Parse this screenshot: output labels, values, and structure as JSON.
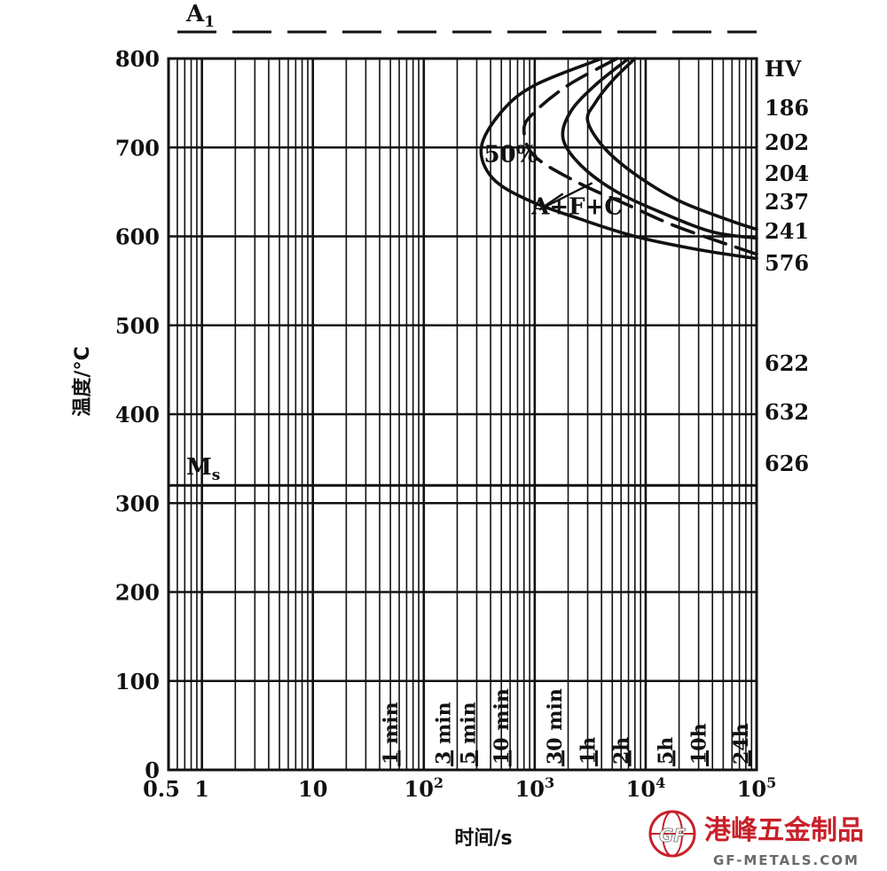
{
  "chart_data": {
    "type": "line",
    "title": "",
    "xlabel": "时间/s",
    "ylabel": "温度/°C",
    "x_scale": "log",
    "xlim": [
      0.5,
      100000
    ],
    "ylim": [
      0,
      800
    ],
    "x_ticks": [
      {
        "value": 0.5,
        "label": "0.5"
      },
      {
        "value": 1,
        "label": "1"
      },
      {
        "value": 10,
        "label": "10"
      },
      {
        "value": 100,
        "label": "10",
        "sup": "2"
      },
      {
        "value": 1000,
        "label": "10",
        "sup": "3"
      },
      {
        "value": 10000,
        "label": "10",
        "sup": "4"
      },
      {
        "value": 100000,
        "label": "10",
        "sup": "5"
      }
    ],
    "y_ticks": [
      0,
      100,
      200,
      300,
      400,
      500,
      600,
      700,
      800
    ],
    "grid": true,
    "time_marks": [
      {
        "label": "1 min",
        "value": 60
      },
      {
        "label": "3 min",
        "value": 180
      },
      {
        "label": "5 min",
        "value": 300
      },
      {
        "label": "10 min",
        "value": 600
      },
      {
        "label": "30 min",
        "value": 1800
      },
      {
        "label": "1h",
        "value": 3600
      },
      {
        "label": "2h",
        "value": 7200
      },
      {
        "label": "5h",
        "value": 18000
      },
      {
        "label": "10h",
        "value": 36000
      },
      {
        "label": "24h",
        "value": 86400
      }
    ],
    "reference_lines": [
      {
        "label": "A",
        "sub": "1",
        "y": 830,
        "style": "dashed"
      },
      {
        "label": "M",
        "sub": "s",
        "y": 320,
        "style": "solid"
      }
    ],
    "series": [
      {
        "style": "solid",
        "points": [
          [
            4000,
            800
          ],
          [
            1000,
            770
          ],
          [
            500,
            740
          ],
          [
            330,
            700
          ],
          [
            420,
            665
          ],
          [
            900,
            640
          ],
          [
            2500,
            620
          ],
          [
            8000,
            600
          ],
          [
            30000,
            585
          ],
          [
            100000,
            575
          ]
        ]
      },
      {
        "style": "dashed",
        "points": [
          [
            5500,
            800
          ],
          [
            2000,
            770
          ],
          [
            1000,
            740
          ],
          [
            800,
            720
          ],
          [
            1000,
            690
          ],
          [
            2500,
            660
          ],
          [
            7000,
            635
          ],
          [
            20000,
            610
          ],
          [
            100000,
            580
          ]
        ]
      },
      {
        "style": "solid",
        "points": [
          [
            7000,
            800
          ],
          [
            3500,
            770
          ],
          [
            2100,
            740
          ],
          [
            1800,
            710
          ],
          [
            2600,
            680
          ],
          [
            5500,
            650
          ],
          [
            15000,
            625
          ],
          [
            40000,
            605
          ],
          [
            100000,
            598
          ]
        ]
      },
      {
        "style": "solid",
        "points": [
          [
            8000,
            800
          ],
          [
            5000,
            775
          ],
          [
            3500,
            750
          ],
          [
            3000,
            730
          ],
          [
            4200,
            700
          ],
          [
            8000,
            670
          ],
          [
            20000,
            640
          ],
          [
            60000,
            617
          ],
          [
            100000,
            608
          ]
        ]
      }
    ],
    "annotations": [
      {
        "text": "50%",
        "x": 880,
        "y": 680
      },
      {
        "text": "A+F+C",
        "x": 330,
        "y": 635
      }
    ],
    "hardness_labels": [
      "HV",
      "186",
      "202",
      "204",
      "237",
      "241",
      "576",
      "622",
      "632",
      "626"
    ]
  },
  "watermark": {
    "cn": "港峰五金制品",
    "en": "GF-METALS.COM",
    "emblem": "GF"
  }
}
